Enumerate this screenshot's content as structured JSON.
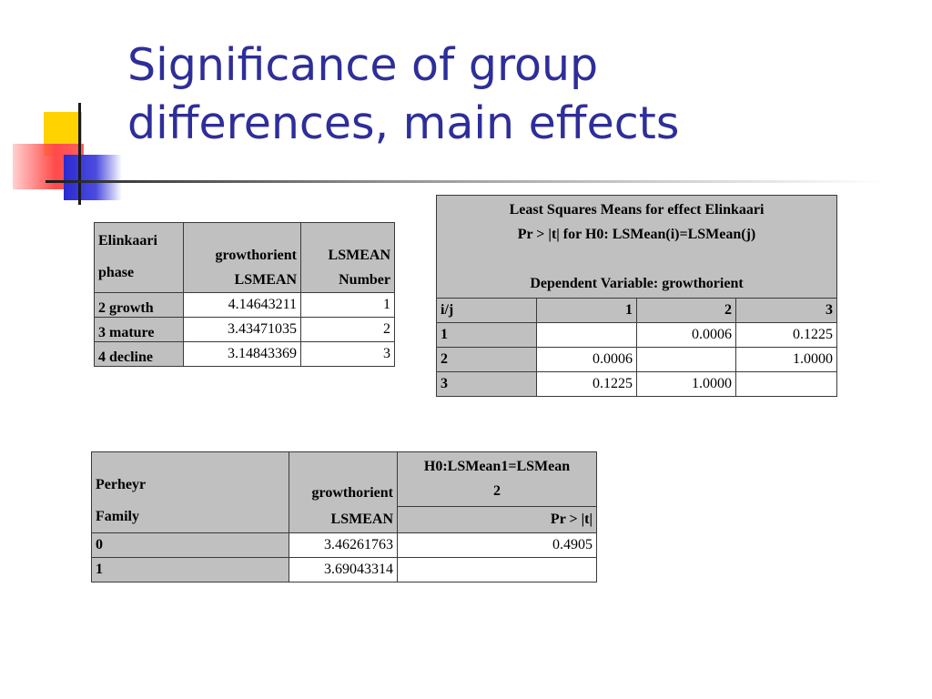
{
  "slide": {
    "title_line1": "Significance of group",
    "title_line2": "differences, main effects"
  },
  "table_phase": {
    "headers": {
      "col1_line1": "Elinkaari",
      "col1_line2": "phase",
      "col2_line1": "growthorient",
      "col2_line2": "LSMEAN",
      "col3_line1": "LSMEAN",
      "col3_line2": "Number"
    },
    "rows": [
      {
        "phase": "2 growth",
        "lsmean": "4.14643211",
        "number": "1"
      },
      {
        "phase": "3 mature",
        "lsmean": "3.43471035",
        "number": "2"
      },
      {
        "phase": "4 decline",
        "lsmean": "3.14843369",
        "number": "3"
      }
    ]
  },
  "table_pairwise": {
    "caption_line1": "Least Squares Means for effect Elinkaari",
    "caption_line2": "Pr > |t| for H0: LSMean(i)=LSMean(j)",
    "caption_line3": "Dependent Variable: growthorient",
    "col_headers": [
      "i/j",
      "1",
      "2",
      "3"
    ],
    "rows": [
      {
        "label": "1",
        "c1": "",
        "c2": "0.0006",
        "c3": "0.1225"
      },
      {
        "label": "2",
        "c1": "0.0006",
        "c2": "",
        "c3": "1.0000"
      },
      {
        "label": "3",
        "c1": "0.1225",
        "c2": "1.0000",
        "c3": ""
      }
    ]
  },
  "table_family": {
    "headers": {
      "col1_line1": "Perheyr",
      "col1_line2": "Family",
      "col2_line1": "growthorient",
      "col2_line2": "LSMEAN",
      "col3_line1": "H0:LSMean1=LSMean",
      "col3_line2": "2",
      "col3_sub": "Pr > |t|"
    },
    "rows": [
      {
        "label": "0",
        "lsmean": "3.46261763",
        "p": "0.4905"
      },
      {
        "label": "1",
        "lsmean": "3.69043314",
        "p": ""
      }
    ]
  }
}
